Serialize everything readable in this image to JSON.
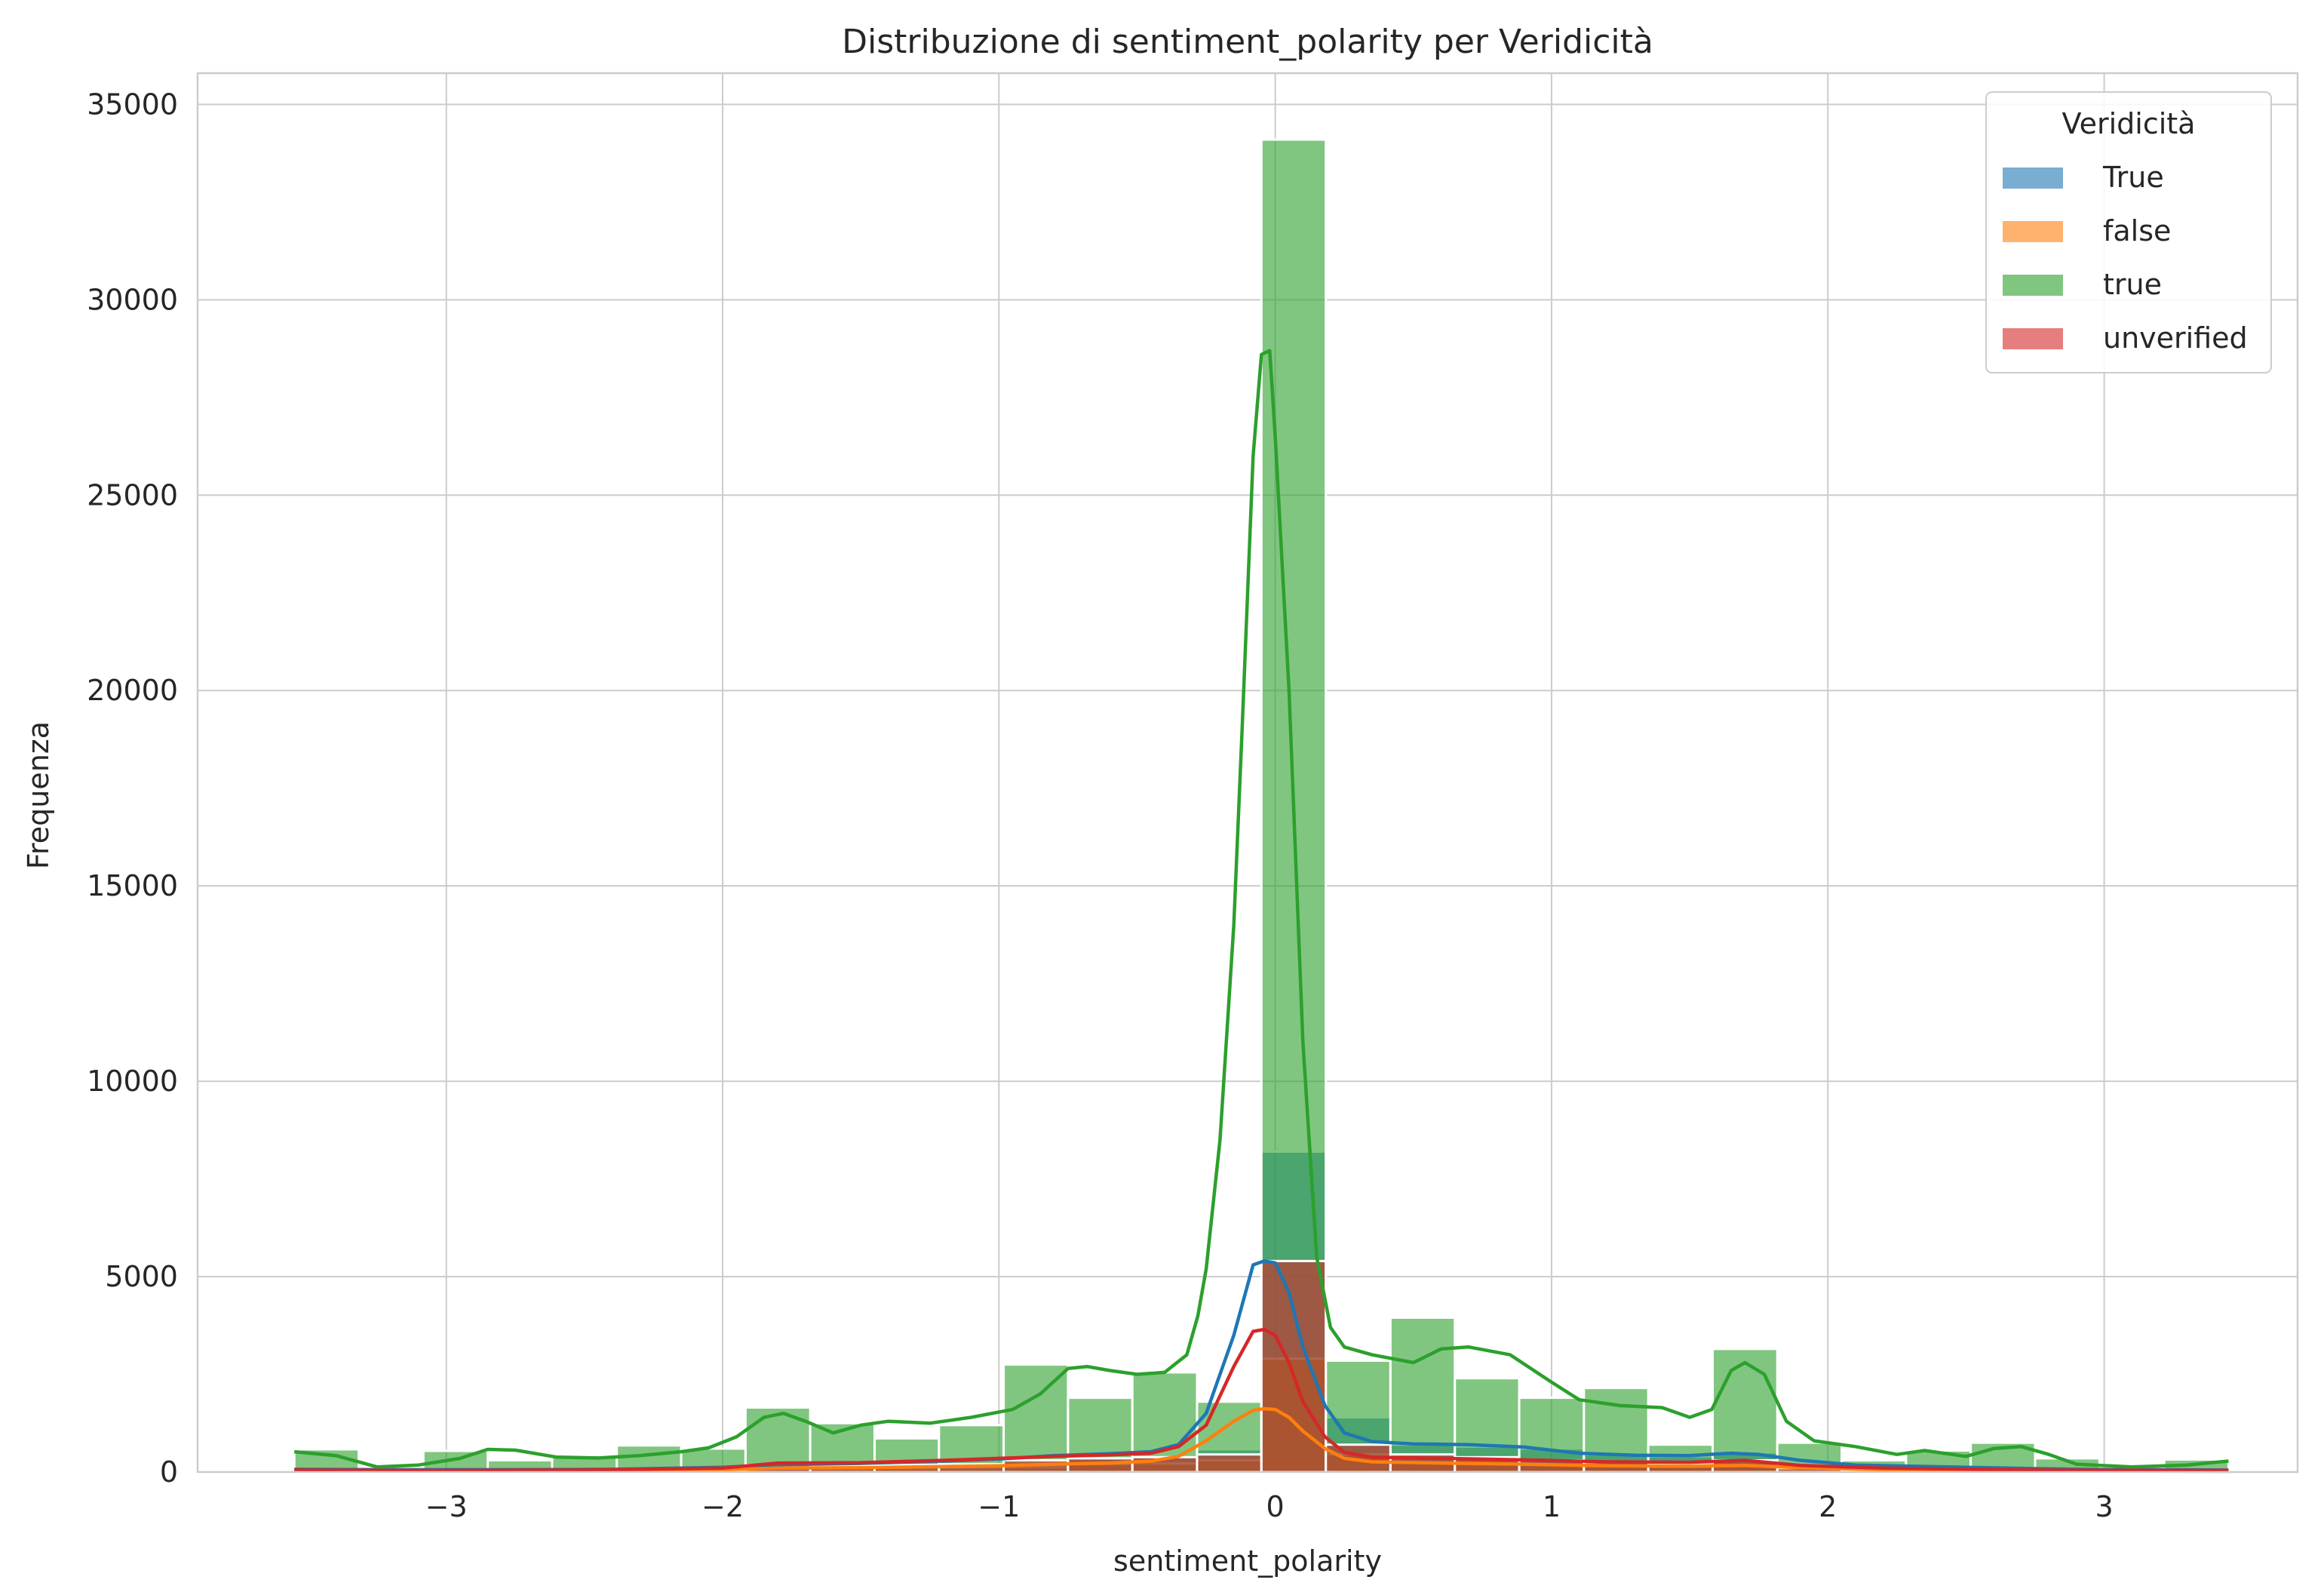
{
  "chart_data": {
    "type": "histogram",
    "title": "Distribuzione di sentiment_polarity per Veridicità",
    "xlabel": "sentiment_polarity",
    "ylabel": "Frequenza",
    "xlim": [
      -3.9,
      3.7
    ],
    "ylim": [
      0,
      35800
    ],
    "xticks": [
      -3,
      -2,
      -1,
      0,
      1,
      2,
      3
    ],
    "xtick_labels": [
      "−3",
      "−2",
      "−1",
      "0",
      "1",
      "2",
      "3"
    ],
    "yticks": [
      0,
      5000,
      10000,
      15000,
      20000,
      25000,
      30000,
      35000
    ],
    "ytick_labels": [
      "0",
      "5000",
      "10000",
      "15000",
      "20000",
      "25000",
      "30000",
      "35000"
    ],
    "grid": true,
    "legend": {
      "title": "Veridicità",
      "placement": "top-right"
    },
    "bins": [
      -3.55,
      -3.317,
      -3.083,
      -2.85,
      -2.617,
      -2.383,
      -2.15,
      -1.917,
      -1.683,
      -1.45,
      -1.217,
      -0.983,
      -0.75,
      -0.517,
      -0.283,
      -0.05,
      0.183,
      0.417,
      0.65,
      0.883,
      1.117,
      1.35,
      1.583,
      1.817,
      2.05,
      2.283,
      2.517,
      2.75,
      2.983,
      3.217,
      3.45
    ],
    "series": [
      {
        "name": "True",
        "color": "#1f77b4",
        "counts": [
          60,
          20,
          40,
          30,
          40,
          60,
          60,
          150,
          140,
          150,
          180,
          250,
          400,
          420,
          580,
          8200,
          1400,
          700,
          650,
          600,
          450,
          400,
          500,
          200,
          120,
          100,
          80,
          40,
          30,
          30
        ],
        "kde": [
          [
            -3.55,
            70
          ],
          [
            -3.2,
            60
          ],
          [
            -2.8,
            60
          ],
          [
            -2.4,
            70
          ],
          [
            -2.0,
            120
          ],
          [
            -1.8,
            190
          ],
          [
            -1.5,
            220
          ],
          [
            -1.2,
            280
          ],
          [
            -1.0,
            330
          ],
          [
            -0.8,
            420
          ],
          [
            -0.6,
            470
          ],
          [
            -0.45,
            520
          ],
          [
            -0.35,
            700
          ],
          [
            -0.25,
            1500
          ],
          [
            -0.15,
            3500
          ],
          [
            -0.08,
            5300
          ],
          [
            -0.04,
            5400
          ],
          [
            0.0,
            5350
          ],
          [
            0.05,
            4600
          ],
          [
            0.1,
            3200
          ],
          [
            0.18,
            1700
          ],
          [
            0.25,
            1000
          ],
          [
            0.35,
            780
          ],
          [
            0.5,
            720
          ],
          [
            0.7,
            700
          ],
          [
            0.9,
            640
          ],
          [
            1.1,
            480
          ],
          [
            1.3,
            430
          ],
          [
            1.5,
            420
          ],
          [
            1.65,
            480
          ],
          [
            1.75,
            450
          ],
          [
            1.9,
            300
          ],
          [
            2.1,
            180
          ],
          [
            2.5,
            120
          ],
          [
            2.9,
            70
          ],
          [
            3.45,
            50
          ]
        ]
      },
      {
        "name": "false",
        "color": "#ff7f0e",
        "counts": [
          20,
          10,
          20,
          20,
          20,
          30,
          40,
          80,
          80,
          90,
          100,
          120,
          200,
          220,
          300,
          2900,
          450,
          250,
          200,
          180,
          150,
          130,
          150,
          60,
          40,
          30,
          30,
          20,
          10,
          10
        ],
        "kde": [
          [
            -3.55,
            30
          ],
          [
            -3.0,
            25
          ],
          [
            -2.5,
            30
          ],
          [
            -2.0,
            60
          ],
          [
            -1.8,
            100
          ],
          [
            -1.5,
            110
          ],
          [
            -1.2,
            140
          ],
          [
            -1.0,
            160
          ],
          [
            -0.8,
            200
          ],
          [
            -0.6,
            230
          ],
          [
            -0.45,
            280
          ],
          [
            -0.35,
            400
          ],
          [
            -0.25,
            800
          ],
          [
            -0.15,
            1300
          ],
          [
            -0.08,
            1580
          ],
          [
            -0.04,
            1620
          ],
          [
            0.0,
            1600
          ],
          [
            0.05,
            1400
          ],
          [
            0.1,
            1050
          ],
          [
            0.18,
            600
          ],
          [
            0.25,
            350
          ],
          [
            0.35,
            260
          ],
          [
            0.6,
            230
          ],
          [
            0.9,
            200
          ],
          [
            1.2,
            160
          ],
          [
            1.5,
            150
          ],
          [
            1.7,
            170
          ],
          [
            1.9,
            110
          ],
          [
            2.2,
            60
          ],
          [
            2.8,
            30
          ],
          [
            3.45,
            20
          ]
        ]
      },
      {
        "name": "true",
        "color": "#2ca02c",
        "counts": [
          580,
          100,
          540,
          300,
          400,
          680,
          600,
          1650,
          1250,
          860,
          1200,
          2750,
          1900,
          2550,
          1800,
          34100,
          2850,
          3950,
          2400,
          1900,
          2150,
          700,
          3150,
          750,
          300,
          550,
          750,
          350,
          80,
          320
        ],
        "kde": [
          [
            -3.55,
            520
          ],
          [
            -3.4,
            420
          ],
          [
            -3.25,
            130
          ],
          [
            -3.1,
            180
          ],
          [
            -2.95,
            350
          ],
          [
            -2.85,
            580
          ],
          [
            -2.75,
            560
          ],
          [
            -2.6,
            380
          ],
          [
            -2.45,
            360
          ],
          [
            -2.3,
            420
          ],
          [
            -2.15,
            520
          ],
          [
            -2.05,
            620
          ],
          [
            -1.95,
            900
          ],
          [
            -1.85,
            1400
          ],
          [
            -1.78,
            1500
          ],
          [
            -1.7,
            1300
          ],
          [
            -1.6,
            1000
          ],
          [
            -1.5,
            1200
          ],
          [
            -1.4,
            1300
          ],
          [
            -1.25,
            1250
          ],
          [
            -1.1,
            1400
          ],
          [
            -0.95,
            1600
          ],
          [
            -0.85,
            2000
          ],
          [
            -0.75,
            2650
          ],
          [
            -0.68,
            2700
          ],
          [
            -0.6,
            2600
          ],
          [
            -0.5,
            2500
          ],
          [
            -0.4,
            2550
          ],
          [
            -0.32,
            3000
          ],
          [
            -0.28,
            4000
          ],
          [
            -0.25,
            5200
          ],
          [
            -0.2,
            8500
          ],
          [
            -0.15,
            14000
          ],
          [
            -0.12,
            19000
          ],
          [
            -0.08,
            26000
          ],
          [
            -0.05,
            28600
          ],
          [
            -0.02,
            28700
          ],
          [
            0.0,
            26500
          ],
          [
            0.05,
            20000
          ],
          [
            0.1,
            11000
          ],
          [
            0.15,
            5500
          ],
          [
            0.2,
            3700
          ],
          [
            0.25,
            3200
          ],
          [
            0.35,
            3000
          ],
          [
            0.5,
            2800
          ],
          [
            0.6,
            3150
          ],
          [
            0.7,
            3200
          ],
          [
            0.85,
            3000
          ],
          [
            1.0,
            2300
          ],
          [
            1.1,
            1850
          ],
          [
            1.25,
            1700
          ],
          [
            1.4,
            1650
          ],
          [
            1.5,
            1400
          ],
          [
            1.58,
            1600
          ],
          [
            1.65,
            2600
          ],
          [
            1.7,
            2800
          ],
          [
            1.77,
            2500
          ],
          [
            1.85,
            1300
          ],
          [
            1.95,
            800
          ],
          [
            2.1,
            650
          ],
          [
            2.25,
            450
          ],
          [
            2.35,
            550
          ],
          [
            2.5,
            400
          ],
          [
            2.6,
            600
          ],
          [
            2.7,
            650
          ],
          [
            2.8,
            450
          ],
          [
            2.9,
            200
          ],
          [
            3.1,
            130
          ],
          [
            3.3,
            180
          ],
          [
            3.45,
            280
          ]
        ]
      },
      {
        "name": "unverified",
        "color": "#d62728",
        "counts": [
          50,
          20,
          40,
          30,
          40,
          50,
          60,
          180,
          170,
          180,
          200,
          300,
          350,
          380,
          450,
          5400,
          700,
          450,
          380,
          300,
          250,
          220,
          300,
          100,
          60,
          50,
          40,
          20,
          20,
          20
        ],
        "kde": [
          [
            -3.55,
            50
          ],
          [
            -3.0,
            40
          ],
          [
            -2.5,
            50
          ],
          [
            -2.0,
            100
          ],
          [
            -1.8,
            230
          ],
          [
            -1.5,
            240
          ],
          [
            -1.2,
            300
          ],
          [
            -1.0,
            350
          ],
          [
            -0.8,
            400
          ],
          [
            -0.6,
            440
          ],
          [
            -0.45,
            480
          ],
          [
            -0.35,
            650
          ],
          [
            -0.25,
            1200
          ],
          [
            -0.15,
            2700
          ],
          [
            -0.08,
            3600
          ],
          [
            -0.04,
            3650
          ],
          [
            0.0,
            3500
          ],
          [
            0.05,
            2800
          ],
          [
            0.1,
            1800
          ],
          [
            0.18,
            900
          ],
          [
            0.25,
            500
          ],
          [
            0.35,
            380
          ],
          [
            0.6,
            350
          ],
          [
            0.9,
            310
          ],
          [
            1.2,
            260
          ],
          [
            1.5,
            250
          ],
          [
            1.7,
            300
          ],
          [
            1.9,
            170
          ],
          [
            2.2,
            100
          ],
          [
            2.8,
            50
          ],
          [
            3.45,
            40
          ]
        ]
      }
    ]
  }
}
